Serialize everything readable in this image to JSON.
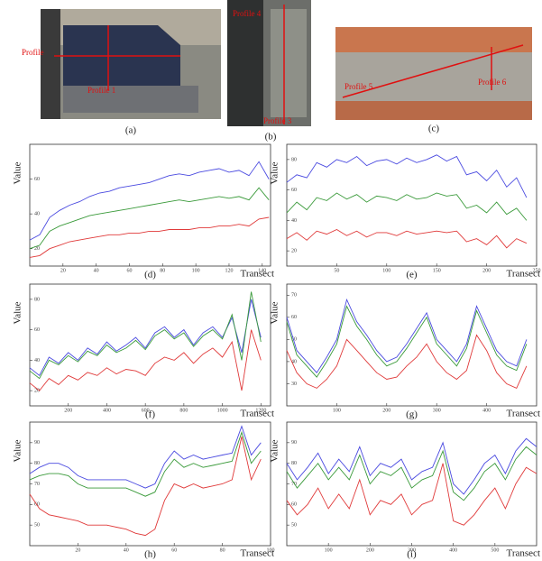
{
  "images": [
    {
      "caption": "(a)",
      "labels": [
        "Profile",
        "Profile 1"
      ]
    },
    {
      "caption": "(b)",
      "labels": [
        "Profile 4",
        "Profile 3"
      ]
    },
    {
      "caption": "(c)",
      "labels": [
        "Profile 5",
        "Profile 6"
      ]
    }
  ],
  "chart_data": [
    {
      "type": "line",
      "caption": "(d)",
      "ylabel": "Value",
      "xlabel": "Transect",
      "x": [
        0,
        6,
        12,
        18,
        24,
        30,
        36,
        42,
        48,
        54,
        60,
        66,
        72,
        78,
        84,
        90,
        96,
        102,
        108,
        114,
        120,
        126,
        132,
        138,
        144
      ],
      "xlim": [
        0,
        145
      ],
      "xticks": [
        20,
        40,
        60,
        80,
        100,
        120,
        140
      ],
      "ylim": [
        10,
        80
      ],
      "yticks": [
        20,
        40,
        60
      ],
      "series": [
        {
          "color": "#4a4ae0",
          "values": [
            25,
            28,
            38,
            42,
            45,
            47,
            50,
            52,
            53,
            55,
            56,
            57,
            58,
            60,
            62,
            63,
            62,
            64,
            65,
            66,
            64,
            65,
            62,
            70,
            60
          ]
        },
        {
          "color": "#3a9a3a",
          "values": [
            20,
            22,
            30,
            33,
            35,
            37,
            39,
            40,
            41,
            42,
            43,
            44,
            45,
            46,
            47,
            48,
            47,
            48,
            49,
            50,
            49,
            50,
            48,
            55,
            48
          ]
        },
        {
          "color": "#e03a3a",
          "values": [
            15,
            16,
            20,
            22,
            24,
            25,
            26,
            27,
            28,
            28,
            29,
            29,
            30,
            30,
            31,
            31,
            31,
            32,
            32,
            33,
            33,
            34,
            33,
            37,
            38
          ]
        }
      ]
    },
    {
      "type": "line",
      "caption": "(e)",
      "ylabel": "Value",
      "xlabel": "Transect",
      "x": [
        0,
        10,
        20,
        30,
        40,
        50,
        60,
        70,
        80,
        90,
        100,
        110,
        120,
        130,
        140,
        150,
        160,
        170,
        180,
        190,
        200,
        210,
        220,
        230,
        240
      ],
      "xlim": [
        0,
        250
      ],
      "xticks": [
        50,
        100,
        150,
        200,
        250
      ],
      "ylim": [
        10,
        90
      ],
      "yticks": [
        20,
        40,
        60,
        80
      ],
      "series": [
        {
          "color": "#4a4ae0",
          "values": [
            65,
            70,
            68,
            78,
            75,
            80,
            78,
            82,
            76,
            79,
            80,
            77,
            81,
            78,
            80,
            83,
            79,
            82,
            70,
            72,
            66,
            73,
            62,
            68,
            55
          ]
        },
        {
          "color": "#3a9a3a",
          "values": [
            45,
            52,
            47,
            55,
            53,
            58,
            54,
            57,
            52,
            56,
            55,
            53,
            57,
            54,
            55,
            58,
            56,
            57,
            48,
            50,
            45,
            52,
            44,
            48,
            40
          ]
        },
        {
          "color": "#e03a3a",
          "values": [
            28,
            32,
            27,
            33,
            31,
            34,
            30,
            33,
            29,
            32,
            32,
            30,
            33,
            31,
            32,
            33,
            32,
            33,
            26,
            28,
            24,
            30,
            22,
            28,
            25
          ]
        }
      ]
    },
    {
      "type": "line",
      "caption": "(f)",
      "ylabel": "Value",
      "xlabel": "Transect",
      "x": [
        0,
        50,
        100,
        150,
        200,
        250,
        300,
        350,
        400,
        450,
        500,
        550,
        600,
        650,
        700,
        750,
        800,
        850,
        900,
        950,
        1000,
        1050,
        1100,
        1150,
        1200
      ],
      "xlim": [
        0,
        1250
      ],
      "xticks": [
        200,
        400,
        600,
        800,
        1000,
        1200
      ],
      "ylim": [
        10,
        90
      ],
      "yticks": [
        20,
        40,
        60,
        80
      ],
      "series": [
        {
          "color": "#4a4ae0",
          "values": [
            35,
            30,
            42,
            38,
            45,
            40,
            48,
            44,
            52,
            46,
            50,
            55,
            48,
            58,
            62,
            55,
            60,
            50,
            58,
            62,
            55,
            68,
            45,
            80,
            55
          ]
        },
        {
          "color": "#3a9a3a",
          "values": [
            33,
            28,
            40,
            37,
            43,
            39,
            46,
            43,
            50,
            45,
            48,
            53,
            47,
            56,
            60,
            54,
            58,
            49,
            56,
            60,
            54,
            70,
            40,
            85,
            52
          ]
        },
        {
          "color": "#e03a3a",
          "values": [
            25,
            20,
            28,
            24,
            30,
            27,
            32,
            30,
            35,
            31,
            34,
            33,
            30,
            38,
            42,
            40,
            45,
            38,
            44,
            48,
            42,
            52,
            20,
            60,
            40
          ]
        }
      ]
    },
    {
      "type": "line",
      "caption": "(g)",
      "ylabel": "Value",
      "xlabel": "Transect",
      "x": [
        0,
        20,
        40,
        60,
        80,
        100,
        120,
        140,
        160,
        180,
        200,
        220,
        240,
        260,
        280,
        300,
        320,
        340,
        360,
        380,
        400,
        420,
        440,
        460,
        480
      ],
      "xlim": [
        0,
        500
      ],
      "xticks": [
        100,
        200,
        300,
        400
      ],
      "ylim": [
        20,
        75
      ],
      "yticks": [
        30,
        40,
        50,
        60,
        70
      ],
      "series": [
        {
          "color": "#4a4ae0",
          "values": [
            60,
            45,
            40,
            35,
            42,
            50,
            68,
            58,
            52,
            45,
            40,
            42,
            48,
            55,
            62,
            50,
            45,
            40,
            48,
            65,
            55,
            45,
            40,
            38,
            50
          ]
        },
        {
          "color": "#3a9a3a",
          "values": [
            58,
            43,
            38,
            33,
            40,
            48,
            65,
            56,
            50,
            43,
            38,
            40,
            46,
            53,
            60,
            48,
            43,
            38,
            46,
            63,
            53,
            43,
            38,
            36,
            48
          ]
        },
        {
          "color": "#e03a3a",
          "values": [
            45,
            35,
            30,
            28,
            32,
            38,
            50,
            45,
            40,
            35,
            32,
            33,
            38,
            42,
            48,
            40,
            35,
            32,
            36,
            52,
            45,
            35,
            30,
            28,
            38
          ]
        }
      ]
    },
    {
      "type": "line",
      "caption": "(h)",
      "ylabel": "Value",
      "xlabel": "Transect",
      "x": [
        0,
        4,
        8,
        12,
        16,
        20,
        24,
        28,
        32,
        36,
        40,
        44,
        48,
        52,
        56,
        60,
        64,
        68,
        72,
        76,
        80,
        84,
        88,
        92,
        96
      ],
      "xlim": [
        0,
        100
      ],
      "xticks": [
        20,
        40,
        60,
        80,
        100
      ],
      "ylim": [
        40,
        100
      ],
      "yticks": [
        50,
        60,
        70,
        80,
        90
      ],
      "series": [
        {
          "color": "#4a4ae0",
          "values": [
            75,
            78,
            80,
            80,
            78,
            74,
            72,
            72,
            72,
            72,
            72,
            70,
            68,
            70,
            80,
            86,
            82,
            84,
            82,
            83,
            84,
            85,
            98,
            84,
            90
          ]
        },
        {
          "color": "#3a9a3a",
          "values": [
            72,
            74,
            75,
            75,
            74,
            70,
            68,
            68,
            68,
            68,
            68,
            66,
            64,
            66,
            76,
            82,
            78,
            80,
            78,
            79,
            80,
            81,
            95,
            80,
            86
          ]
        },
        {
          "color": "#e03a3a",
          "values": [
            65,
            58,
            55,
            54,
            53,
            52,
            50,
            50,
            50,
            49,
            48,
            46,
            45,
            48,
            62,
            70,
            68,
            70,
            68,
            69,
            70,
            72,
            93,
            72,
            82
          ]
        }
      ]
    },
    {
      "type": "line",
      "caption": "(i)",
      "ylabel": "Value",
      "xlabel": "Transect",
      "x": [
        0,
        25,
        50,
        75,
        100,
        125,
        150,
        175,
        200,
        225,
        250,
        275,
        300,
        325,
        350,
        375,
        400,
        425,
        450,
        475,
        500,
        525,
        550,
        575,
        600
      ],
      "xlim": [
        0,
        600
      ],
      "xticks": [
        100,
        200,
        300,
        400,
        500
      ],
      "ylim": [
        40,
        100
      ],
      "yticks": [
        50,
        60,
        70,
        80,
        90
      ],
      "series": [
        {
          "color": "#4a4ae0",
          "values": [
            80,
            72,
            78,
            85,
            75,
            82,
            76,
            88,
            74,
            80,
            78,
            82,
            72,
            76,
            78,
            90,
            70,
            65,
            72,
            80,
            84,
            75,
            86,
            92,
            88
          ]
        },
        {
          "color": "#3a9a3a",
          "values": [
            76,
            68,
            74,
            80,
            72,
            78,
            72,
            84,
            70,
            76,
            74,
            78,
            68,
            72,
            74,
            86,
            66,
            62,
            68,
            76,
            80,
            72,
            82,
            88,
            84
          ]
        },
        {
          "color": "#e03a3a",
          "values": [
            62,
            55,
            60,
            68,
            58,
            65,
            58,
            72,
            55,
            62,
            60,
            65,
            55,
            60,
            62,
            80,
            52,
            50,
            55,
            62,
            68,
            58,
            70,
            78,
            75
          ]
        }
      ]
    }
  ]
}
